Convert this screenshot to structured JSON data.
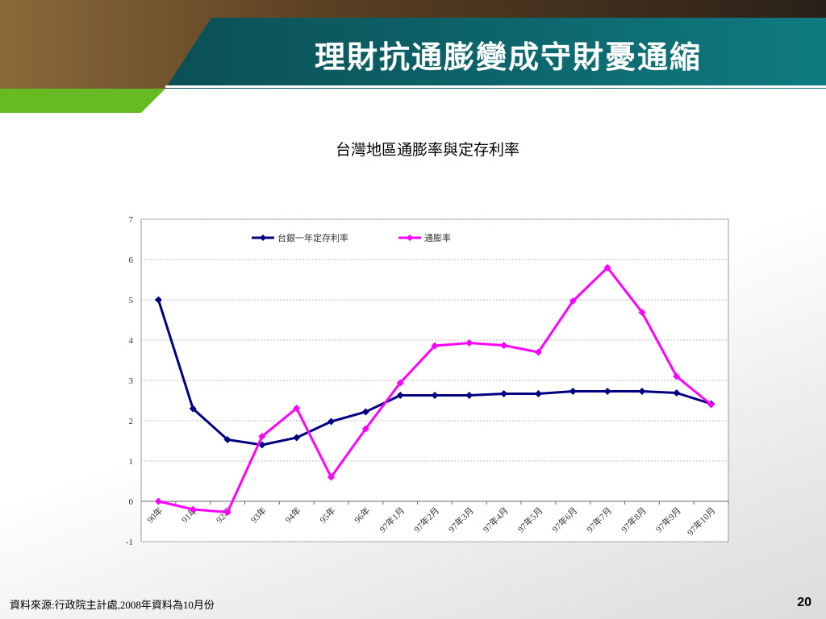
{
  "slide": {
    "title": "理財抗通膨變成守財憂通縮",
    "source": "資料來源:行政院主計處,2008年資料為10月份",
    "page_number": "20"
  },
  "chart_data": {
    "type": "line",
    "title": "台灣地區通膨率與定存利率",
    "categories": [
      "90年",
      "91年",
      "92年",
      "93年",
      "94年",
      "95年",
      "96年",
      "97年1月",
      "97年2月",
      "97年3月",
      "97年4月",
      "97年5月",
      "97年6月",
      "97年7月",
      "97年8月",
      "97年9月",
      "97年10月"
    ],
    "series": [
      {
        "name": "台銀一年定存利率",
        "color": "#000080",
        "values": [
          5.0,
          2.3,
          1.53,
          1.4,
          1.58,
          1.98,
          2.22,
          2.63,
          2.63,
          2.63,
          2.67,
          2.67,
          2.73,
          2.73,
          2.73,
          2.69,
          2.42
        ]
      },
      {
        "name": "通膨率",
        "color": "#ff00ff",
        "values": [
          0,
          -0.2,
          -0.27,
          1.61,
          2.31,
          0.6,
          1.8,
          2.94,
          3.86,
          3.93,
          3.87,
          3.7,
          4.97,
          5.8,
          4.69,
          3.1,
          2.4
        ]
      }
    ],
    "ylim": [
      -1,
      7
    ],
    "yticks": [
      -1,
      0,
      1,
      2,
      3,
      4,
      5,
      6,
      7
    ],
    "grid": true,
    "legend": "top"
  }
}
